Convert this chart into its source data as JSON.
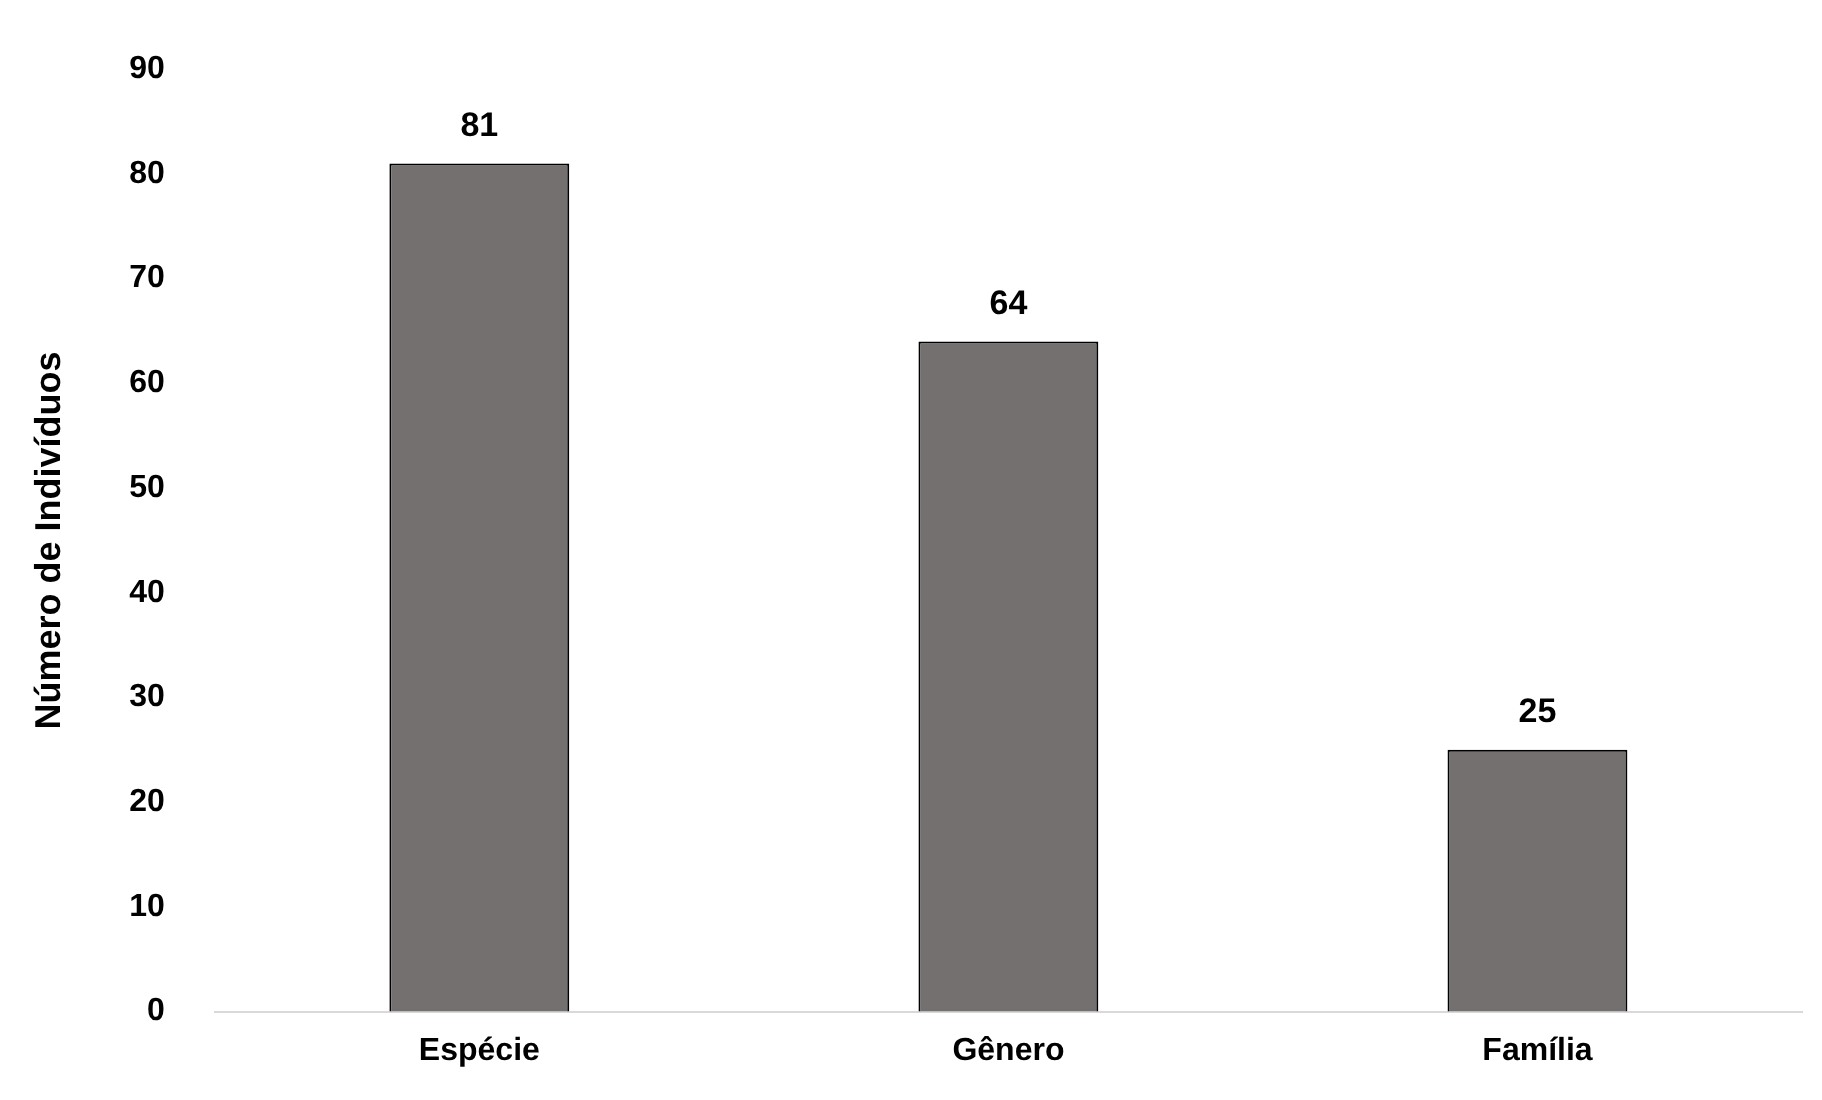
{
  "chart_data": {
    "type": "bar",
    "ylabel": "Número de Indivíduos",
    "categories": [
      "Espécie",
      "Gênero",
      "Família"
    ],
    "values": [
      81,
      64,
      25
    ],
    "color": "#747070",
    "ylim": [
      0,
      90
    ],
    "yticks": [
      0,
      10,
      20,
      30,
      40,
      50,
      60,
      70,
      80,
      90
    ],
    "grid": false,
    "data_labels": true
  }
}
